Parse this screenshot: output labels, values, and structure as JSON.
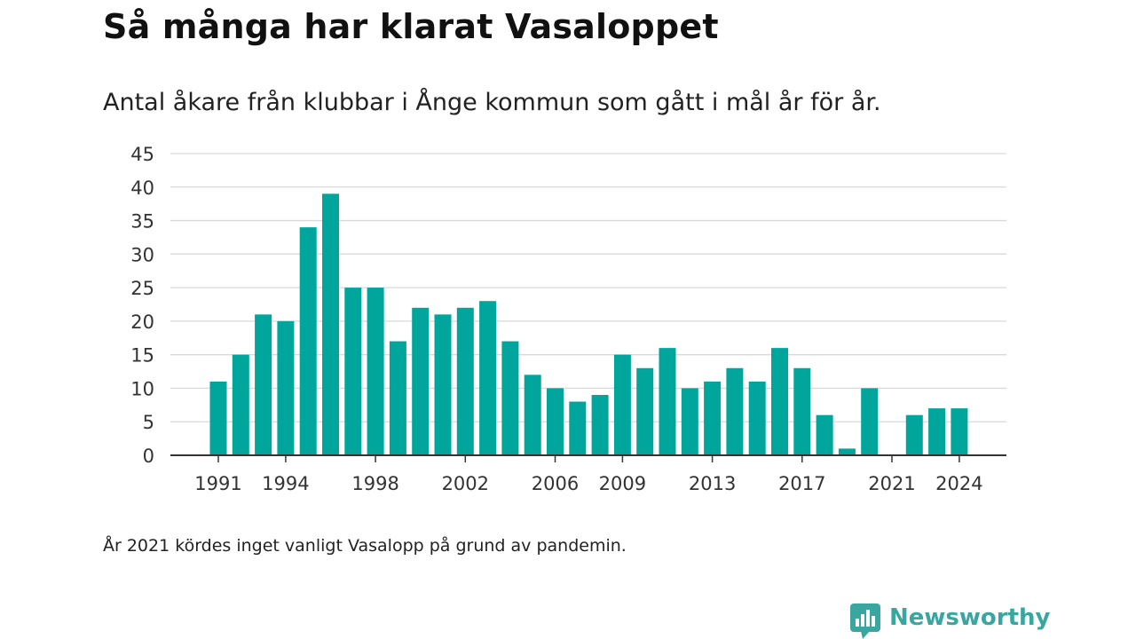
{
  "title": "Så många har klarat Vasaloppet",
  "subtitle": "Antal åkare från klubbar i Ånge kommun som gått i mål år för år.",
  "note": "År 2021 kördes inget vanligt Vasalopp på grund av pandemin.",
  "brand": {
    "name": "Newsworthy",
    "icon": "newsworthy-logo-icon",
    "color": "#3aa6a0"
  },
  "chart_data": {
    "type": "bar",
    "color": "#00a69c",
    "categories": [
      1991,
      1992,
      1993,
      1994,
      1995,
      1996,
      1997,
      1998,
      1999,
      2000,
      2001,
      2002,
      2003,
      2004,
      2005,
      2006,
      2007,
      2008,
      2009,
      2010,
      2011,
      2012,
      2013,
      2014,
      2015,
      2016,
      2017,
      2018,
      2019,
      2020,
      2021,
      2022,
      2023,
      2024
    ],
    "values": [
      11,
      15,
      21,
      20,
      34,
      39,
      25,
      25,
      17,
      22,
      21,
      22,
      23,
      17,
      12,
      10,
      8,
      9,
      15,
      13,
      16,
      10,
      11,
      13,
      11,
      16,
      13,
      6,
      1,
      10,
      0,
      6,
      7,
      7
    ],
    "x_tick_labels": [
      "1991",
      "1994",
      "1998",
      "2002",
      "2006",
      "2009",
      "2013",
      "2017",
      "2021",
      "2024"
    ],
    "y_ticks": [
      0,
      5,
      10,
      15,
      20,
      25,
      30,
      35,
      40,
      45
    ],
    "ylim": [
      0,
      45
    ],
    "xlabel": "",
    "ylabel": "",
    "grid": true,
    "legend": "none"
  }
}
